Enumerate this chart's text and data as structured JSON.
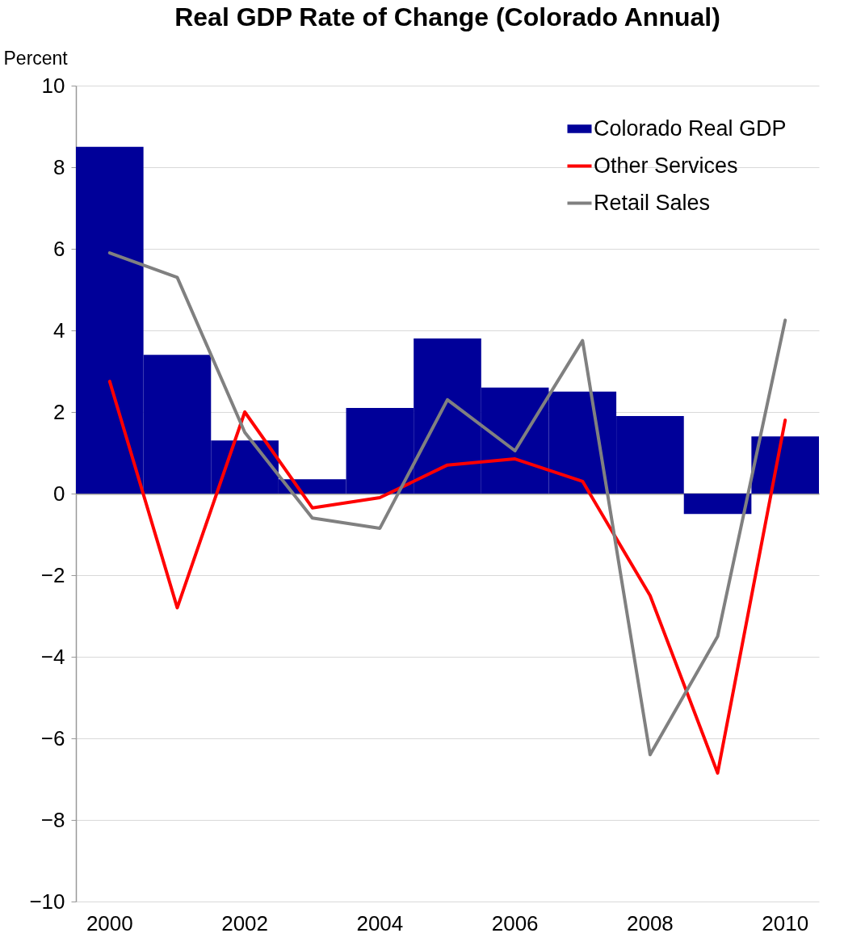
{
  "chart_data": {
    "type": "bar",
    "title": "Real GDP Rate of Change (Colorado Annual)",
    "ylabel": "Percent",
    "categories": [
      "2000",
      null,
      "2002",
      null,
      "2004",
      null,
      "2006",
      null,
      "2008",
      null,
      "2010"
    ],
    "series": [
      {
        "name": "Colorado Real GDP",
        "color": "#000099",
        "values": [
          8.5,
          3.4,
          1.3,
          0.35,
          2.1,
          3.8,
          2.6,
          2.5,
          1.9,
          -0.5,
          1.4
        ]
      },
      {
        "name": "Other Services",
        "type": "line",
        "color": "#ff0000",
        "values": [
          2.75,
          -2.8,
          2.0,
          -0.35,
          -0.1,
          0.7,
          0.85,
          0.3,
          -2.5,
          -6.85,
          1.8
        ]
      },
      {
        "name": "Retail Sales",
        "type": "line",
        "color": "#808080",
        "values": [
          5.9,
          5.3,
          1.5,
          -0.6,
          -0.85,
          2.3,
          1.05,
          3.75,
          -6.4,
          -3.5,
          4.25
        ]
      }
    ],
    "ylim": [
      -10,
      10
    ],
    "yticks": [
      -10,
      -8,
      -6,
      -4,
      -2,
      0,
      2,
      4,
      6,
      8,
      10
    ],
    "grid": "y",
    "legend": "top right"
  }
}
